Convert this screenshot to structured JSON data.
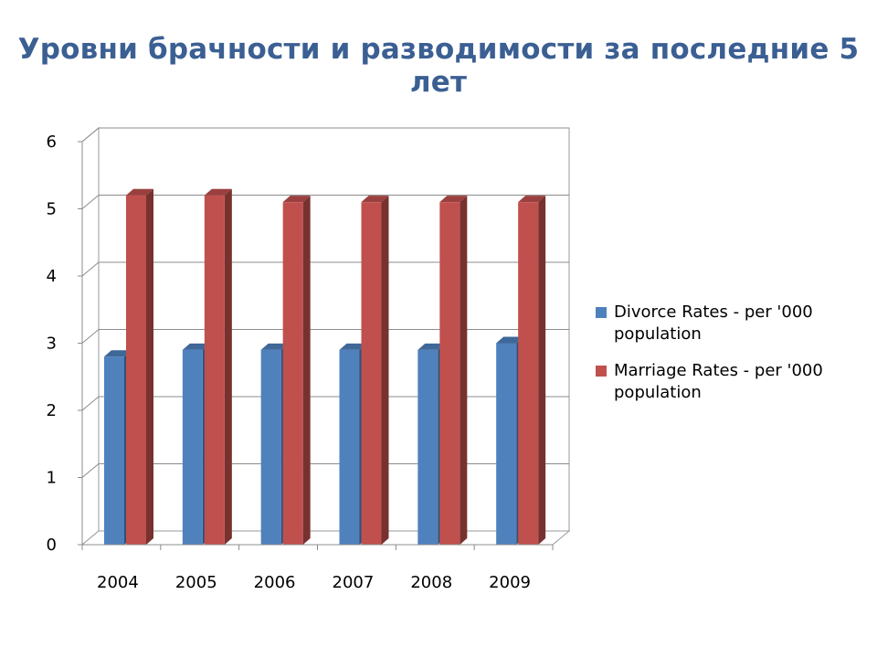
{
  "slide": {
    "title": "Уровни брачности и разводимости за последние 5 лет"
  },
  "chart_data": {
    "type": "bar",
    "title": "",
    "xlabel": "",
    "ylabel": "",
    "categories": [
      "2004",
      "2005",
      "2006",
      "2007",
      "2008",
      "2009"
    ],
    "series": [
      {
        "name": "Divorce Rates - per '000 population",
        "values": [
          2.8,
          2.9,
          2.9,
          2.9,
          2.9,
          3.0
        ],
        "color": "#4F81BD"
      },
      {
        "name": "Marriage Rates - per '000 population",
        "values": [
          5.2,
          5.2,
          5.1,
          5.1,
          5.1,
          5.1
        ],
        "color": "#C0504D"
      }
    ],
    "ylim": [
      0,
      6
    ],
    "yticks": [
      "0",
      "1",
      "2",
      "3",
      "4",
      "5",
      "6"
    ],
    "grid": true,
    "style": "3d-clustered-column",
    "legend_position": "right"
  }
}
